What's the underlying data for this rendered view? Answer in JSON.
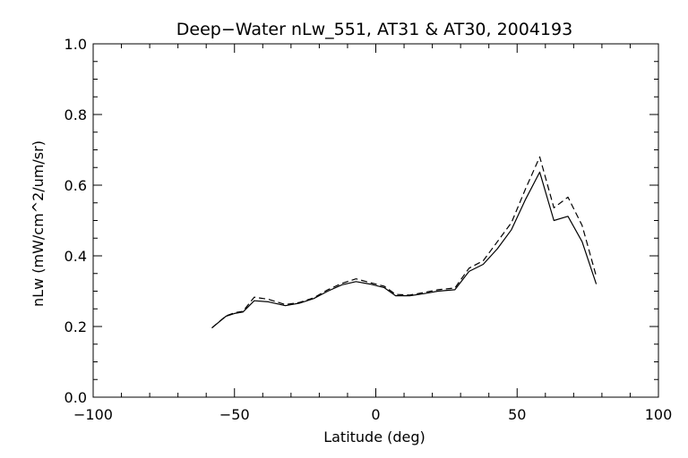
{
  "chart_data": {
    "type": "line",
    "title": "Deep−Water nLw_551, AT31 & AT30, 2004193",
    "xlabel": "Latitude (deg)",
    "ylabel": "nLw (mW/cm^2/um/sr)",
    "xlim": [
      -100,
      100
    ],
    "ylim": [
      0.0,
      1.0
    ],
    "x_ticks": [
      -100,
      -50,
      0,
      50,
      100
    ],
    "x_tick_labels": [
      "−100",
      "−50",
      "0",
      "50",
      "100"
    ],
    "y_ticks": [
      0.0,
      0.2,
      0.4,
      0.6,
      0.8,
      1.0
    ],
    "y_tick_labels": [
      "0.0",
      "0.2",
      "0.4",
      "0.6",
      "0.8",
      "1.0"
    ],
    "grid": false,
    "series": [
      {
        "style": "solid",
        "x": [
          -58,
          -53,
          -50,
          -47,
          -43,
          -38,
          -32,
          -27,
          -22,
          -17,
          -12,
          -7,
          -2,
          3,
          7,
          12,
          17,
          22,
          28,
          33,
          38,
          43,
          48,
          53,
          58,
          63,
          68,
          73,
          78
        ],
        "y": [
          0.196,
          0.229,
          0.237,
          0.241,
          0.273,
          0.27,
          0.259,
          0.266,
          0.279,
          0.3,
          0.318,
          0.327,
          0.32,
          0.31,
          0.287,
          0.287,
          0.293,
          0.3,
          0.304,
          0.356,
          0.376,
          0.42,
          0.474,
          0.56,
          0.637,
          0.5,
          0.512,
          0.44,
          0.32
        ]
      },
      {
        "style": "dashed",
        "x": [
          -58,
          -53,
          -50,
          -47,
          -43,
          -38,
          -32,
          -27,
          -22,
          -17,
          -12,
          -7,
          -2,
          3,
          7,
          12,
          17,
          22,
          28,
          33,
          38,
          43,
          48,
          53,
          58,
          63,
          68,
          73,
          78
        ],
        "y": [
          0.196,
          0.23,
          0.239,
          0.243,
          0.283,
          0.277,
          0.262,
          0.268,
          0.281,
          0.304,
          0.322,
          0.335,
          0.324,
          0.314,
          0.291,
          0.289,
          0.296,
          0.304,
          0.309,
          0.365,
          0.386,
          0.44,
          0.494,
          0.59,
          0.68,
          0.536,
          0.566,
          0.486,
          0.342
        ]
      }
    ]
  }
}
